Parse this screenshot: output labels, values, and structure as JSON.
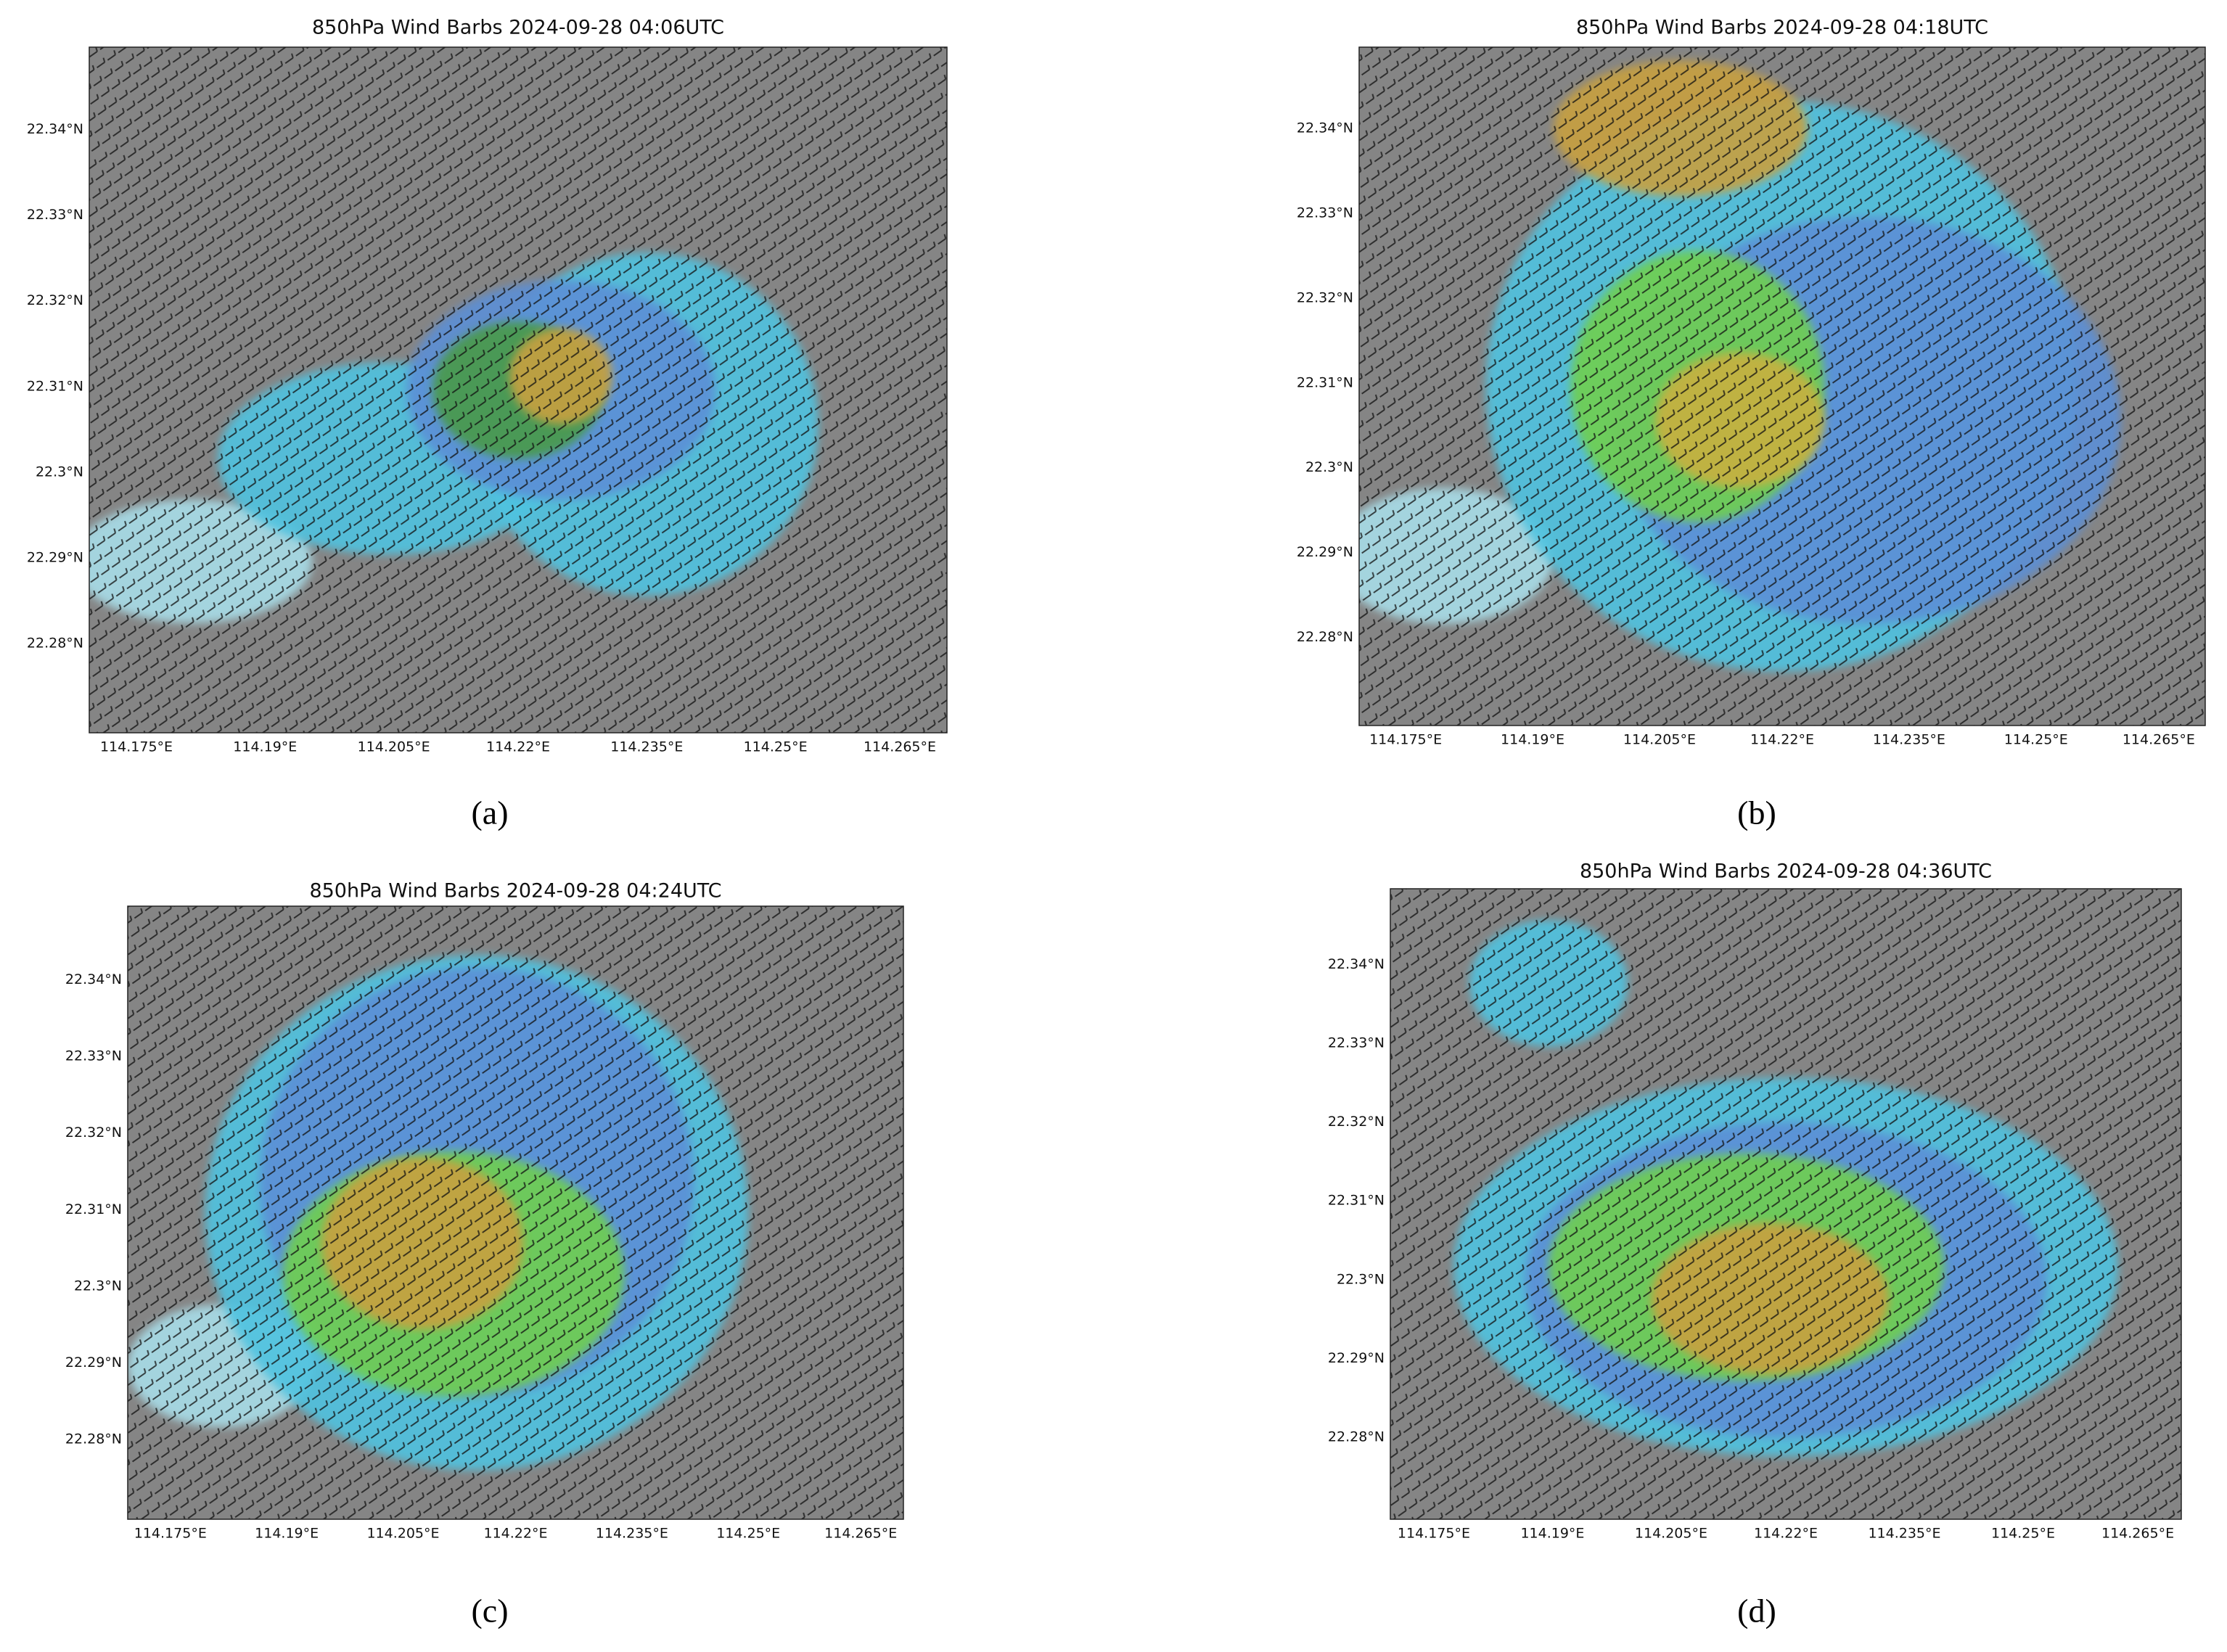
{
  "panels": [
    {
      "title": "850hPa Wind Barbs 2024-09-28 04:06UTC",
      "caption": "(a)",
      "x_tick_labels": [
        "114.175°E",
        "114.19°E",
        "114.205°E",
        "114.22°E",
        "114.235°E",
        "114.25°E",
        "114.265°E"
      ],
      "y_tick_labels": [
        "22.34°N",
        "22.33°N",
        "22.32°N",
        "22.31°N",
        "22.3°N",
        "22.29°N",
        "22.28°N"
      ]
    },
    {
      "title": "850hPa Wind Barbs 2024-09-28 04:18UTC",
      "caption": "(b)",
      "x_tick_labels": [
        "114.175°E",
        "114.19°E",
        "114.205°E",
        "114.22°E",
        "114.235°E",
        "114.25°E",
        "114.265°E"
      ],
      "y_tick_labels": [
        "22.34°N",
        "22.33°N",
        "22.32°N",
        "22.31°N",
        "22.3°N",
        "22.29°N",
        "22.28°N"
      ]
    },
    {
      "title": "850hPa Wind Barbs 2024-09-28 04:24UTC",
      "caption": "(c)",
      "x_tick_labels": [
        "114.175°E",
        "114.19°E",
        "114.205°E",
        "114.22°E",
        "114.235°E",
        "114.25°E",
        "114.265°E"
      ],
      "y_tick_labels": [
        "22.34°N",
        "22.33°N",
        "22.32°N",
        "22.31°N",
        "22.3°N",
        "22.29°N",
        "22.28°N"
      ]
    },
    {
      "title": "850hPa Wind Barbs 2024-09-28 04:36UTC",
      "caption": "(d)",
      "x_tick_labels": [
        "114.175°E",
        "114.19°E",
        "114.205°E",
        "114.22°E",
        "114.235°E",
        "114.25°E",
        "114.265°E"
      ],
      "y_tick_labels": [
        "22.34°N",
        "22.33°N",
        "22.32°N",
        "22.31°N",
        "22.3°N",
        "22.29°N",
        "22.28°N"
      ]
    }
  ]
}
